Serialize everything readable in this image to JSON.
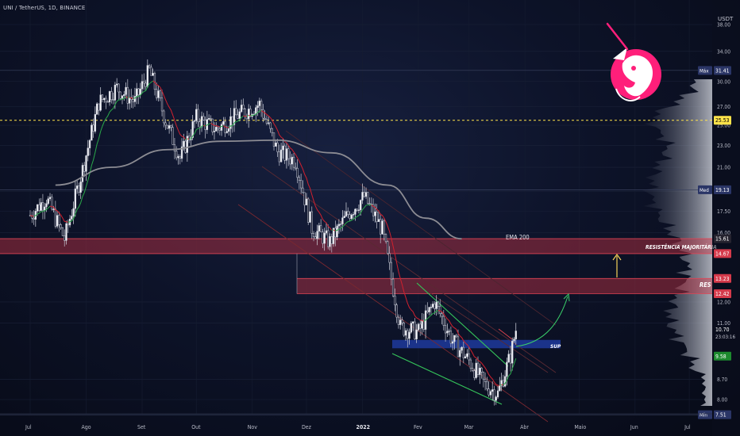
{
  "header": {
    "ticker": "UNI / TetherUS, 1D, BINANCE",
    "currency": "USDT"
  },
  "colors": {
    "background": "#0b0f1e",
    "resistance_zone": "#c33344",
    "support_zone": "#1e3a9c",
    "ema200": "#8c8c93",
    "ema_fast": "#d0202e",
    "bull_ma": "#2aa84a",
    "dashed_level": "#ffe34a",
    "logo": "#ff1f7a"
  },
  "chart_data": {
    "type": "candlestick",
    "symbol": "UNI/USDT",
    "timeframe": "1D",
    "exchange": "BINANCE",
    "y_axis": {
      "scale": "log",
      "ticks": [
        38.0,
        34.0,
        30.0,
        27.0,
        25.0,
        23.0,
        21.0,
        19.0,
        17.5,
        16.0,
        12.0,
        11.0,
        8.7,
        8.0
      ]
    },
    "x_axis": {
      "ticks": [
        "Jul",
        "Ago",
        "Set",
        "Out",
        "Nov",
        "Dez",
        "2022",
        "Fev",
        "Mar",
        "Abr",
        "Maio",
        "Jun",
        "Jul"
      ]
    },
    "close_path": [
      {
        "x": "Jul 01",
        "y": 17.2
      },
      {
        "x": "Jul 10",
        "y": 18.5
      },
      {
        "x": "Jul 20",
        "y": 15.6
      },
      {
        "x": "Jul 30",
        "y": 20.8
      },
      {
        "x": "Ago 08",
        "y": 27.5
      },
      {
        "x": "Ago 18",
        "y": 29.2
      },
      {
        "x": "Ago 28",
        "y": 27.6
      },
      {
        "x": "Set 05",
        "y": 31.4
      },
      {
        "x": "Set 14",
        "y": 25.5
      },
      {
        "x": "Set 22",
        "y": 21.8
      },
      {
        "x": "Out 01",
        "y": 25.8
      },
      {
        "x": "Out 12",
        "y": 24.6
      },
      {
        "x": "Out 24",
        "y": 26.1
      },
      {
        "x": "Nov 05",
        "y": 27.3
      },
      {
        "x": "Nov 15",
        "y": 22.4
      },
      {
        "x": "Nov 25",
        "y": 21.6
      },
      {
        "x": "Dez 04",
        "y": 16.3
      },
      {
        "x": "Dez 14",
        "y": 15.4
      },
      {
        "x": "Dez 24",
        "y": 17.3
      },
      {
        "x": "2022-01-02",
        "y": 18.6
      },
      {
        "x": "Jan 12",
        "y": 16.2
      },
      {
        "x": "Jan 22",
        "y": 10.8
      },
      {
        "x": "Fev 01",
        "y": 10.6
      },
      {
        "x": "Fev 10",
        "y": 12.0
      },
      {
        "x": "Fev 20",
        "y": 10.2
      },
      {
        "x": "Mar 01",
        "y": 9.4
      },
      {
        "x": "Mar 10",
        "y": 8.5
      },
      {
        "x": "Mar 17",
        "y": 8.2
      },
      {
        "x": "Mar 24",
        "y": 9.6
      },
      {
        "x": "Mar 27",
        "y": 10.7
      }
    ],
    "indicators": [
      {
        "name": "EMA 200",
        "values_path": [
          {
            "x": "Jul 15",
            "y": 19.5
          },
          {
            "x": "Ago 15",
            "y": 21.0
          },
          {
            "x": "Set 15",
            "y": 22.6
          },
          {
            "x": "Out 15",
            "y": 23.4
          },
          {
            "x": "Nov 15",
            "y": 23.5
          },
          {
            "x": "Dez 15",
            "y": 22.3
          },
          {
            "x": "2022-01-15",
            "y": 19.5
          },
          {
            "x": "Fev 05",
            "y": 17.0
          },
          {
            "x": "Fev 25",
            "y": 15.6
          }
        ]
      }
    ],
    "zones": [
      {
        "label": "RESISTÊNCIA MAJORITÁRIA",
        "from": 14.67,
        "to": 15.61
      },
      {
        "label": "RES",
        "from": 12.42,
        "to": 13.23
      },
      {
        "label": "SUP",
        "from": 9.9,
        "to": 10.25
      }
    ],
    "price_labels": [
      {
        "label": "Máx",
        "value": 31.41
      },
      {
        "value": 25.53
      },
      {
        "label": "Med",
        "value": 19.13
      },
      {
        "value": 15.61
      },
      {
        "value": 14.67
      },
      {
        "value": 13.23
      },
      {
        "value": 12.42
      },
      {
        "value": 10.7,
        "countdown": "23:03:16"
      },
      {
        "value": 9.58
      },
      {
        "label": "Mín",
        "value": 7.51
      }
    ],
    "annotations": [
      "EMA 200",
      "RESISTÊNCIA MAJORITÁRIA",
      "RES",
      "SUP"
    ]
  }
}
